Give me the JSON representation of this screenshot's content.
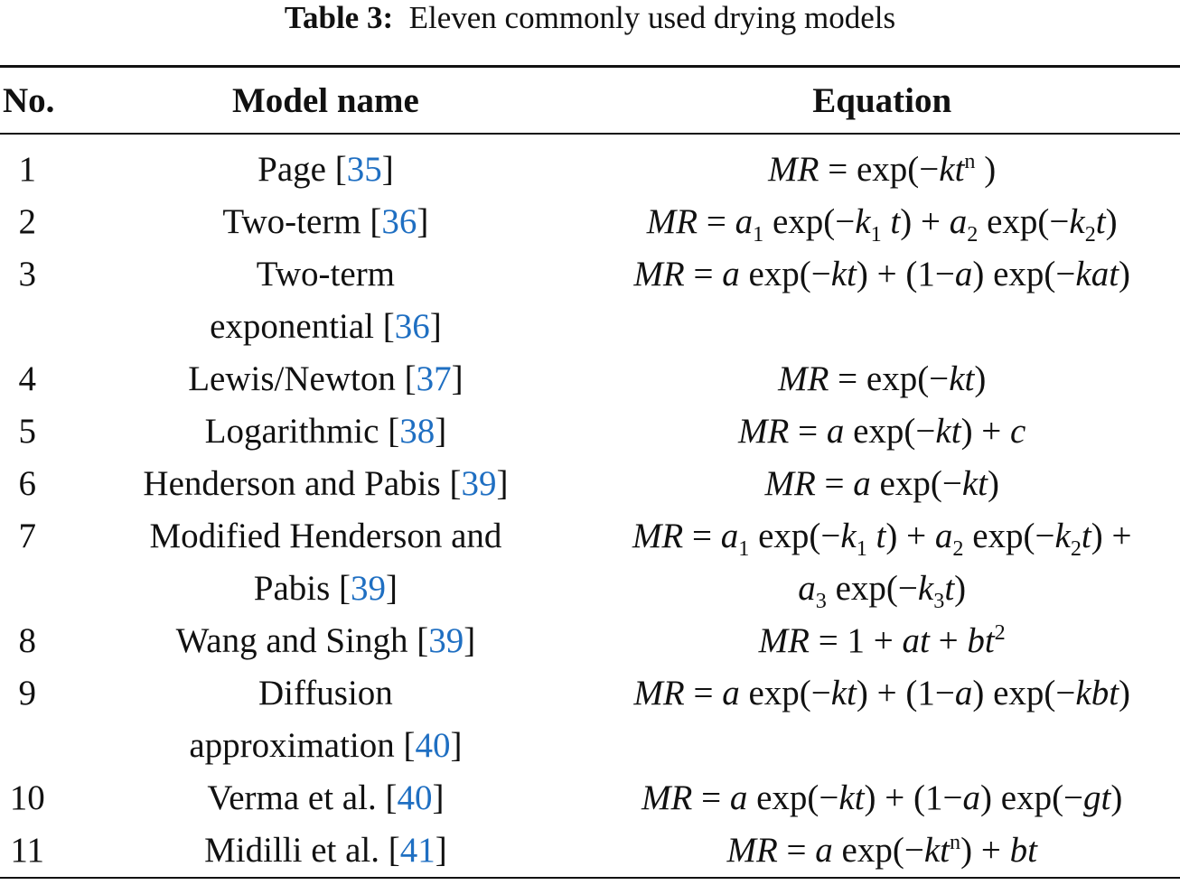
{
  "caption": {
    "label": "Table 3:",
    "text": "Eleven commonly used drying models"
  },
  "headers": {
    "no": "No.",
    "model": "Model name",
    "equation": "Equation"
  },
  "colors": {
    "reference_link": "#1f6fc2"
  },
  "rows": [
    {
      "no": "1",
      "name": "Page",
      "ref": "35",
      "equation": [
        [
          "i",
          "MR"
        ],
        [
          "r",
          " = exp(−"
        ],
        [
          "i",
          "kt"
        ],
        [
          "sup",
          "n"
        ],
        [
          "r",
          " )"
        ]
      ]
    },
    {
      "no": "2",
      "name": "Two-term",
      "ref": "36",
      "equation": [
        [
          "i",
          "MR"
        ],
        [
          "r",
          " = "
        ],
        [
          "i",
          "a"
        ],
        [
          "sub",
          "1"
        ],
        [
          "r",
          " exp(−"
        ],
        [
          "i",
          "k"
        ],
        [
          "sub",
          "1"
        ],
        [
          "i",
          " t"
        ],
        [
          "r",
          ") + "
        ],
        [
          "i",
          "a"
        ],
        [
          "sub",
          "2"
        ],
        [
          "r",
          " exp(−"
        ],
        [
          "i",
          "k"
        ],
        [
          "sub",
          "2"
        ],
        [
          "i",
          "t"
        ],
        [
          "r",
          ")"
        ]
      ]
    },
    {
      "no": "3",
      "name": "Two-term\nexponential",
      "ref": "36",
      "equation": [
        [
          "i",
          "MR"
        ],
        [
          "r",
          " = "
        ],
        [
          "i",
          "a"
        ],
        [
          "r",
          " exp(−"
        ],
        [
          "i",
          "kt"
        ],
        [
          "r",
          ") + (1−"
        ],
        [
          "i",
          "a"
        ],
        [
          "r",
          ") exp(−"
        ],
        [
          "i",
          "kat"
        ],
        [
          "r",
          ")"
        ]
      ]
    },
    {
      "no": "4",
      "name": "Lewis/Newton",
      "ref": "37",
      "equation": [
        [
          "i",
          "MR"
        ],
        [
          "r",
          " = exp(−"
        ],
        [
          "i",
          "kt"
        ],
        [
          "r",
          ")"
        ]
      ]
    },
    {
      "no": "5",
      "name": "Logarithmic",
      "ref": "38",
      "equation": [
        [
          "i",
          "MR"
        ],
        [
          "r",
          " = "
        ],
        [
          "i",
          "a"
        ],
        [
          "r",
          " exp(−"
        ],
        [
          "i",
          "kt"
        ],
        [
          "r",
          ") + "
        ],
        [
          "i",
          "c"
        ]
      ]
    },
    {
      "no": "6",
      "name": "Henderson and Pabis",
      "ref": "39",
      "equation": [
        [
          "i",
          "MR"
        ],
        [
          "r",
          " = "
        ],
        [
          "i",
          "a"
        ],
        [
          "r",
          " exp(−"
        ],
        [
          "i",
          "kt"
        ],
        [
          "r",
          ")"
        ]
      ]
    },
    {
      "no": "7",
      "name": "Modified Henderson and\nPabis",
      "ref": "39",
      "equation": [
        [
          "i",
          "MR"
        ],
        [
          "r",
          " = "
        ],
        [
          "i",
          "a"
        ],
        [
          "sub",
          "1"
        ],
        [
          "r",
          " exp(−"
        ],
        [
          "i",
          "k"
        ],
        [
          "sub",
          "1"
        ],
        [
          "i",
          " t"
        ],
        [
          "r",
          ") + "
        ],
        [
          "i",
          "a"
        ],
        [
          "sub",
          "2"
        ],
        [
          "r",
          " exp(−"
        ],
        [
          "i",
          "k"
        ],
        [
          "sub",
          "2"
        ],
        [
          "i",
          "t"
        ],
        [
          "r",
          ") +"
        ],
        [
          "br",
          ""
        ],
        [
          "i",
          "a"
        ],
        [
          "sub",
          "3"
        ],
        [
          "r",
          " exp(−"
        ],
        [
          "i",
          "k"
        ],
        [
          "sub",
          "3"
        ],
        [
          "i",
          "t"
        ],
        [
          "r",
          ")"
        ]
      ]
    },
    {
      "no": "8",
      "name": "Wang and Singh",
      "ref": "39",
      "equation": [
        [
          "i",
          "MR"
        ],
        [
          "r",
          " = 1 + "
        ],
        [
          "i",
          "at"
        ],
        [
          "r",
          " + "
        ],
        [
          "i",
          "bt"
        ],
        [
          "sup",
          "2"
        ]
      ]
    },
    {
      "no": "9",
      "name": "Diffusion\napproximation",
      "ref": "40",
      "equation": [
        [
          "i",
          "MR"
        ],
        [
          "r",
          " = "
        ],
        [
          "i",
          "a"
        ],
        [
          "r",
          " exp(−"
        ],
        [
          "i",
          "kt"
        ],
        [
          "r",
          ") + (1−"
        ],
        [
          "i",
          "a"
        ],
        [
          "r",
          ") exp(−"
        ],
        [
          "i",
          "kbt"
        ],
        [
          "r",
          ")"
        ]
      ]
    },
    {
      "no": "10",
      "name": "Verma et al.",
      "ref": "40",
      "equation": [
        [
          "i",
          "MR"
        ],
        [
          "r",
          " = "
        ],
        [
          "i",
          "a"
        ],
        [
          "r",
          " exp(−"
        ],
        [
          "i",
          "kt"
        ],
        [
          "r",
          ") + (1−"
        ],
        [
          "i",
          "a"
        ],
        [
          "r",
          ") exp(−"
        ],
        [
          "i",
          "gt"
        ],
        [
          "r",
          ")"
        ]
      ]
    },
    {
      "no": "11",
      "name": "Midilli et al.",
      "ref": "41",
      "equation": [
        [
          "i",
          "MR"
        ],
        [
          "r",
          " = "
        ],
        [
          "i",
          "a"
        ],
        [
          "r",
          " exp(−"
        ],
        [
          "i",
          "kt"
        ],
        [
          "sup",
          "n"
        ],
        [
          "r",
          ") + "
        ],
        [
          "i",
          "bt"
        ]
      ]
    }
  ]
}
